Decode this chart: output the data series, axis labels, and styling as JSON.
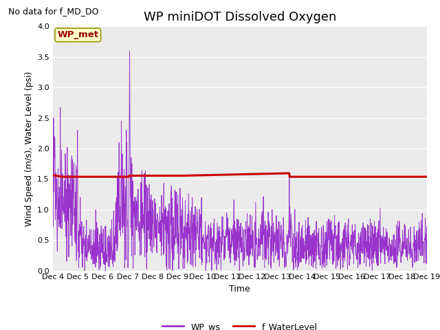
{
  "title": "WP miniDOT Dissolved Oxygen",
  "no_data_text": "No data for f_MD_DO",
  "ylabel": "Wind Speed (m/s), Water Level (psi)",
  "xlabel": "Time",
  "ylim": [
    0.0,
    4.0
  ],
  "yticks": [
    0.0,
    0.5,
    1.0,
    1.5,
    2.0,
    2.5,
    3.0,
    3.5,
    4.0
  ],
  "bg_color": "#ebebeb",
  "fig_bg_color": "#ffffff",
  "wp_ws_color": "#9933cc",
  "f_wl_color": "#cc0000",
  "legend_box_fill": "#ffffcc",
  "legend_box_edge": "#999900",
  "legend_box_text_color": "#990000",
  "legend_box_text": "WP_met",
  "wp_ws_label": "WP_ws",
  "f_wl_label": "f_WaterLevel",
  "title_fontsize": 13,
  "axis_fontsize": 9,
  "tick_fontsize": 8,
  "legend_fontsize": 9,
  "water_level_segments_x": [
    0,
    0.33,
    0.34,
    3.05,
    3.07,
    5.2,
    5.22,
    9.48,
    9.5,
    15
  ],
  "water_level_segments_y": [
    1.563,
    1.54,
    1.537,
    1.537,
    1.555,
    1.555,
    1.555,
    1.595,
    1.537,
    1.537
  ]
}
